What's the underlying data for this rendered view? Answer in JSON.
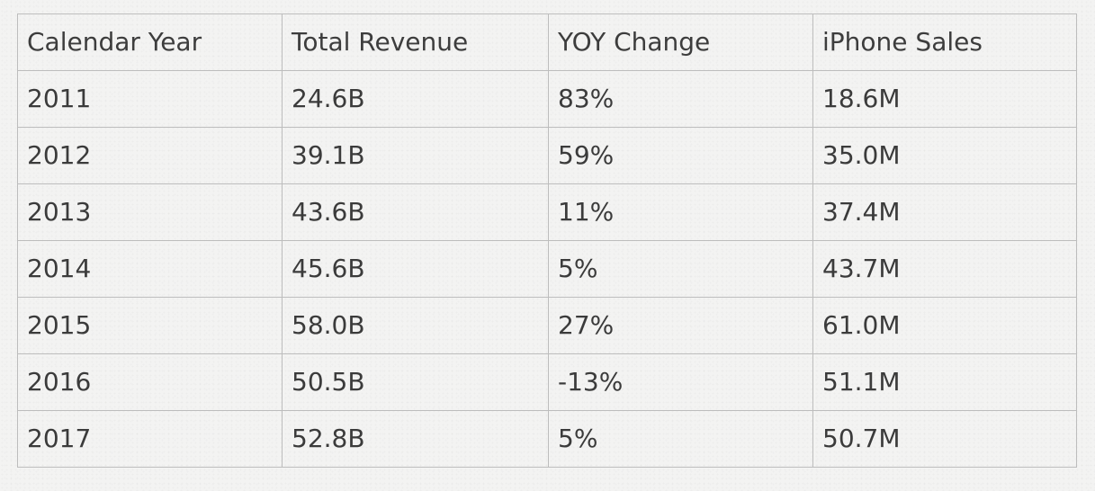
{
  "chart_data": {
    "type": "table",
    "columns": [
      "Calendar Year",
      "Total Revenue",
      "YOY Change",
      "iPhone Sales"
    ],
    "rows": [
      [
        "2011",
        "24.6B",
        "83%",
        "18.6M"
      ],
      [
        "2012",
        "39.1B",
        "59%",
        "35.0M"
      ],
      [
        "2013",
        "43.6B",
        "11%",
        "37.4M"
      ],
      [
        "2014",
        "45.6B",
        "5%",
        "43.7M"
      ],
      [
        "2015",
        "58.0B",
        "27%",
        "61.0M"
      ],
      [
        "2016",
        "50.5B",
        "-13%",
        "51.1M"
      ],
      [
        "2017",
        "52.8B",
        "5%",
        "50.7M"
      ]
    ]
  },
  "colors": {
    "background": "#f3f3f2",
    "grid_line": "#bdbdbd",
    "text": "#3b3b3b"
  }
}
